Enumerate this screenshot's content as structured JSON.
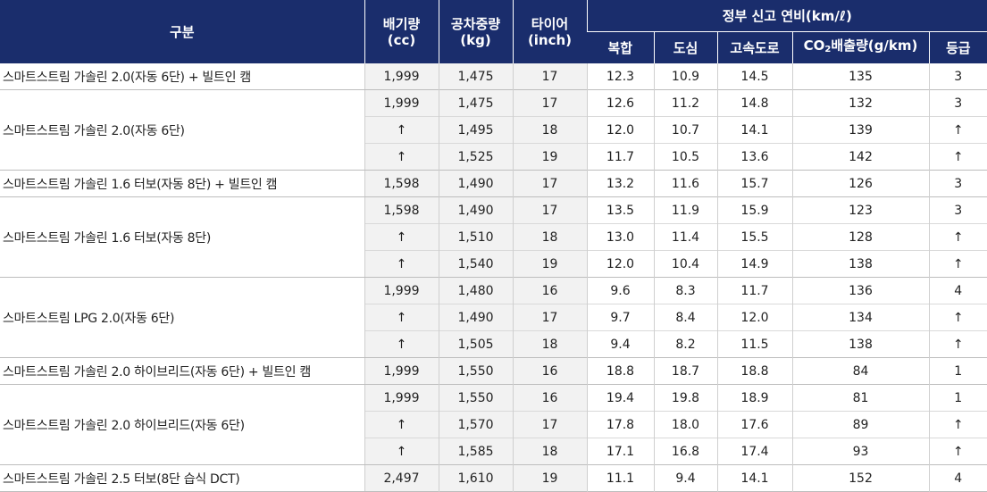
{
  "header": {
    "category": "구분",
    "displacement": "배기량\n(cc)",
    "weight": "공차중량\n(kg)",
    "tire": "타이어\n(inch)",
    "fuel_economy_group": "정부 신고 연비(km/ℓ)",
    "combined": "복합",
    "city": "도심",
    "highway": "고속도로",
    "co2_prefix": "CO",
    "co2_sub": "2",
    "co2_suffix": "배출량(g/km)",
    "grade": "등급"
  },
  "groups": [
    {
      "model": "스마트스트림 가솔린 2.0(자동 6단) + 빌트인 캠",
      "rows": [
        [
          "1,999",
          "1,475",
          "17",
          "12.3",
          "10.9",
          "14.5",
          "135",
          "3"
        ]
      ]
    },
    {
      "model": "스마트스트림 가솔린 2.0(자동 6단)",
      "rows": [
        [
          "1,999",
          "1,475",
          "17",
          "12.6",
          "11.2",
          "14.8",
          "132",
          "3"
        ],
        [
          "↑",
          "1,495",
          "18",
          "12.0",
          "10.7",
          "14.1",
          "139",
          "↑"
        ],
        [
          "↑",
          "1,525",
          "19",
          "11.7",
          "10.5",
          "13.6",
          "142",
          "↑"
        ]
      ]
    },
    {
      "model": "스마트스트림 가솔린 1.6 터보(자동 8단) + 빌트인 캠",
      "rows": [
        [
          "1,598",
          "1,490",
          "17",
          "13.2",
          "11.6",
          "15.7",
          "126",
          "3"
        ]
      ]
    },
    {
      "model": "스마트스트림 가솔린 1.6 터보(자동 8단)",
      "rows": [
        [
          "1,598",
          "1,490",
          "17",
          "13.5",
          "11.9",
          "15.9",
          "123",
          "3"
        ],
        [
          "↑",
          "1,510",
          "18",
          "13.0",
          "11.4",
          "15.5",
          "128",
          "↑"
        ],
        [
          "↑",
          "1,540",
          "19",
          "12.0",
          "10.4",
          "14.9",
          "138",
          "↑"
        ]
      ]
    },
    {
      "model": "스마트스트림 LPG 2.0(자동 6단)",
      "rows": [
        [
          "1,999",
          "1,480",
          "16",
          "9.6",
          "8.3",
          "11.7",
          "136",
          "4"
        ],
        [
          "↑",
          "1,490",
          "17",
          "9.7",
          "8.4",
          "12.0",
          "134",
          "↑"
        ],
        [
          "↑",
          "1,505",
          "18",
          "9.4",
          "8.2",
          "11.5",
          "138",
          "↑"
        ]
      ]
    },
    {
      "model": "스마트스트림 가솔린 2.0 하이브리드(자동 6단) + 빌트인 캠",
      "rows": [
        [
          "1,999",
          "1,550",
          "16",
          "18.8",
          "18.7",
          "18.8",
          "84",
          "1"
        ]
      ]
    },
    {
      "model": "스마트스트림 가솔린 2.0 하이브리드(자동 6단)",
      "rows": [
        [
          "1,999",
          "1,550",
          "16",
          "19.4",
          "19.8",
          "18.9",
          "81",
          "1"
        ],
        [
          "↑",
          "1,570",
          "17",
          "17.8",
          "18.0",
          "17.6",
          "89",
          "↑"
        ],
        [
          "↑",
          "1,585",
          "18",
          "17.1",
          "16.8",
          "17.4",
          "93",
          "↑"
        ]
      ]
    },
    {
      "model": "스마트스트림 가솔린 2.5 터보(8단 습식 DCT)",
      "rows": [
        [
          "2,497",
          "1,610",
          "19",
          "11.1",
          "9.4",
          "14.1",
          "152",
          "4"
        ]
      ]
    }
  ]
}
